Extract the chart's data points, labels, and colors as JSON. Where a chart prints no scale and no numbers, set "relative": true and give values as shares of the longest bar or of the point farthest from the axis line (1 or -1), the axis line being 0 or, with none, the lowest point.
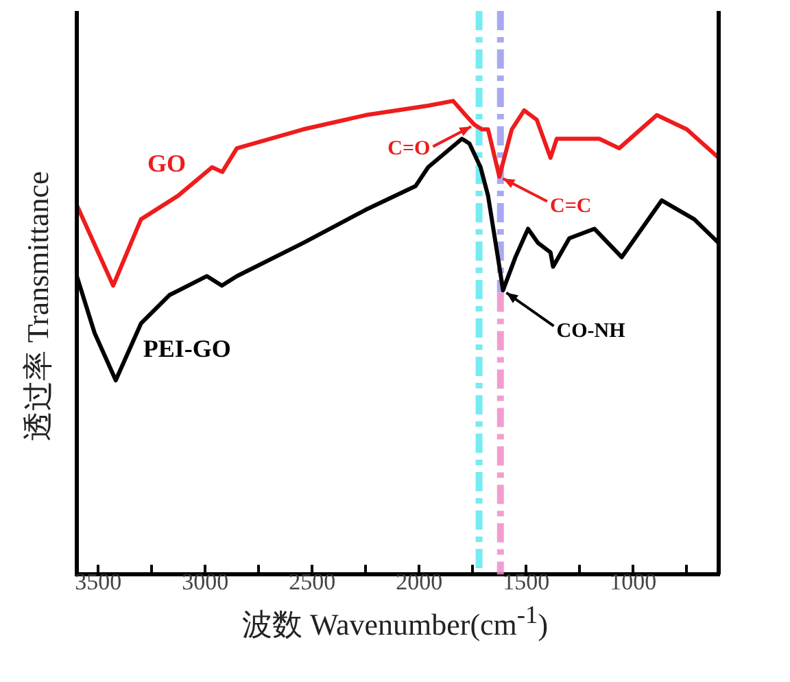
{
  "chart_data": {
    "type": "line",
    "xlabel": "波数 Wavenumber(cm$^{-1}$)",
    "ylabel": "透过率 Transmittance",
    "relative": true,
    "legend": false,
    "marker": "none",
    "line_style": "solid",
    "xlim": [
      3600,
      600
    ],
    "xticks": [
      {
        "value": 3250,
        "label": null
      },
      3500,
      3000,
      {
        "value": 2750,
        "label": null
      },
      2500,
      {
        "value": 2250,
        "label": null
      },
      2000,
      {
        "value": 1750,
        "label": null
      },
      1500,
      {
        "value": 1250,
        "label": null
      },
      1000,
      {
        "value": 750,
        "label": null
      }
    ],
    "series": [
      {
        "name": "GO",
        "color": "#ee1c1c",
        "x": [
          3600,
          3430,
          3300,
          3126,
          2968,
          2920,
          2852,
          2542,
          2250,
          1958,
          1841,
          1783,
          1742,
          1707,
          1678,
          1625,
          1567,
          1509,
          1450,
          1386,
          1357,
          1258,
          1158,
          1065,
          889,
          749,
          600
        ],
        "values": [
          0.78,
          0.61,
          0.75,
          0.8,
          0.86,
          0.85,
          0.9,
          0.94,
          0.97,
          0.99,
          1,
          0.97,
          0.95,
          0.94,
          0.94,
          0.84,
          0.94,
          0.98,
          0.96,
          0.88,
          0.92,
          0.92,
          0.92,
          0.9,
          0.97,
          0.94,
          0.88
        ]
      },
      {
        "name": "PEI-GO",
        "color": "#000000",
        "x": [
          3600,
          3517,
          3418,
          3300,
          3167,
          2992,
          2922,
          2852,
          2542,
          2250,
          2017,
          1958,
          1800,
          1765,
          1713,
          1678,
          1625,
          1608,
          1550,
          1491,
          1444,
          1386,
          1374,
          1298,
          1181,
          1053,
          866,
          714,
          600
        ],
        "values": [
          0.63,
          0.51,
          0.41,
          0.53,
          0.59,
          0.63,
          0.61,
          0.63,
          0.7,
          0.77,
          0.82,
          0.86,
          0.92,
          0.91,
          0.86,
          0.8,
          0.65,
          0.6,
          0.67,
          0.73,
          0.7,
          0.68,
          0.65,
          0.71,
          0.73,
          0.67,
          0.79,
          0.75,
          0.7
        ]
      }
    ],
    "ref_lines": [
      {
        "axis": "x",
        "value": 1720,
        "color": "#5ee8ee",
        "line_style": "dashdot"
      },
      {
        "axis": "x",
        "value": 1620,
        "color": "#9a9af0",
        "line_style": "dashdot"
      },
      {
        "axis": "x",
        "value": 1620,
        "color": "#f08cc8",
        "line_style": "dashdot"
      }
    ],
    "annotations": [
      {
        "text": "C=O",
        "x": 1740,
        "y": 0.95
      },
      {
        "text": "C=C",
        "x": 1625,
        "y": 0.84
      },
      {
        "text": "CO-NH",
        "x": 1608,
        "y": 0.6
      }
    ]
  }
}
